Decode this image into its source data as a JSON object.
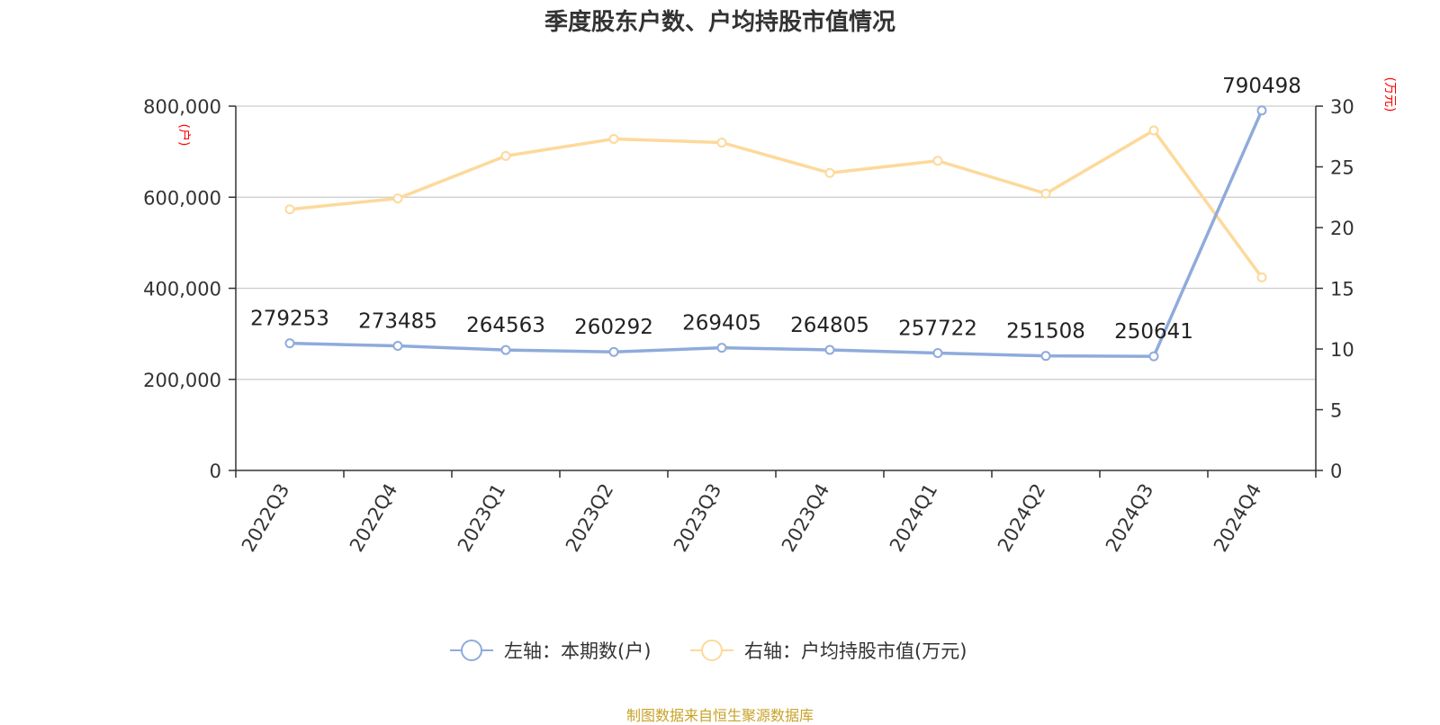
{
  "title": "季度股东户数、户均持股市值情况",
  "source": "制图数据来自恒生聚源数据库",
  "colors": {
    "left_series": "#8fabdb",
    "right_series": "#fdd99b",
    "grid": "#cccccc",
    "axis": "#333333",
    "unit_label": "#ff0000",
    "source": "#c9a227"
  },
  "chart_data": {
    "type": "line",
    "title": "季度股东户数、户均持股市值情况",
    "categories": [
      "2022Q3",
      "2022Q4",
      "2023Q1",
      "2023Q2",
      "2023Q3",
      "2023Q4",
      "2024Q1",
      "2024Q2",
      "2024Q3",
      "2024Q4"
    ],
    "left_axis": {
      "unit": "(户)",
      "ylim": [
        0,
        800000
      ],
      "ticks": [
        "0",
        "200,000",
        "400,000",
        "600,000",
        "800,000"
      ]
    },
    "right_axis": {
      "unit": "(万元)",
      "ylim": [
        0,
        30
      ],
      "ticks": [
        "0",
        "5",
        "10",
        "15",
        "20",
        "25",
        "30"
      ]
    },
    "series": [
      {
        "name": "左轴：本期数(户)",
        "axis": "left",
        "values": [
          279253,
          273485,
          264563,
          260292,
          269405,
          264805,
          257722,
          251508,
          250641,
          790498
        ],
        "labels": [
          "279253",
          "273485",
          "264563",
          "260292",
          "269405",
          "264805",
          "257722",
          "251508",
          "250641",
          "790498"
        ]
      },
      {
        "name": "右轴：户均持股市值(万元)",
        "axis": "right",
        "values": [
          21.5,
          22.4,
          25.9,
          27.3,
          27.0,
          24.5,
          25.5,
          22.8,
          28.0,
          15.9
        ]
      }
    ],
    "legend": "bottom-center",
    "grid": true
  }
}
